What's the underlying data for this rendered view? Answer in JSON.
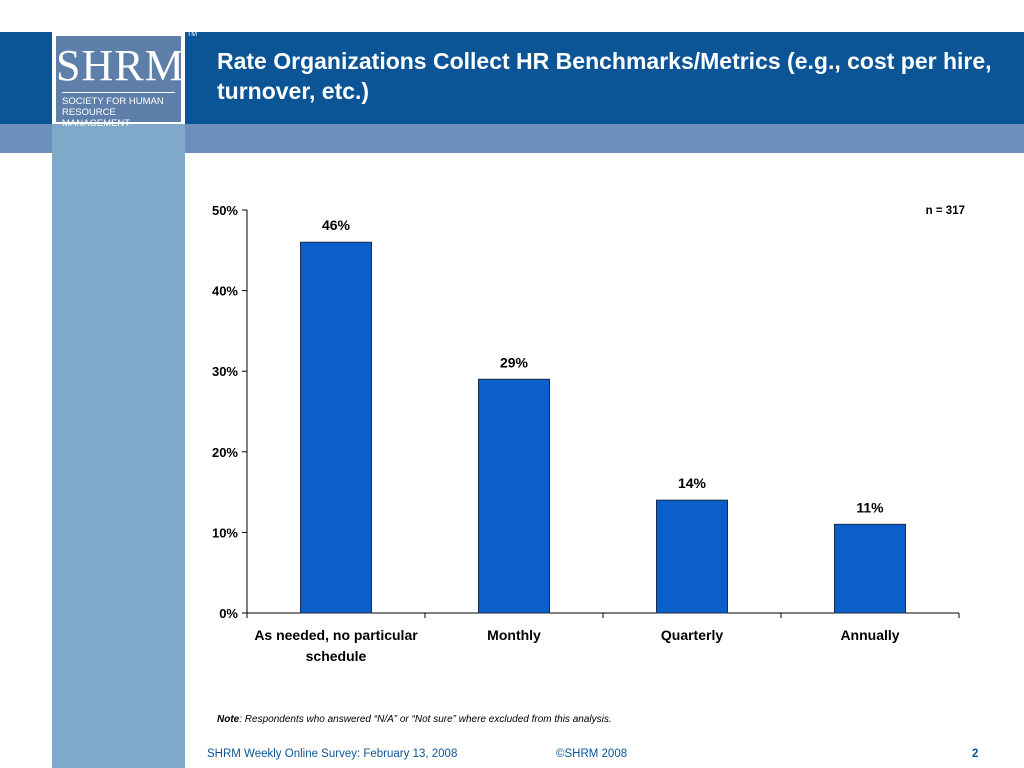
{
  "slide": {
    "title": "Rate Organizations Collect HR Benchmarks/Metrics (e.g., cost per hire, turnover, etc.)",
    "logo": {
      "letters": "SHRM",
      "tm": "TM",
      "line1": "SOCIETY FOR HUMAN",
      "line2": "RESOURCE MANAGEMENT"
    },
    "note_label": "Note",
    "note_text": ": Respondents who answered  “N/A” or “Not sure” where excluded from this analysis.",
    "footer_left": "SHRM Weekly Online Survey: February  13, 2008",
    "footer_center": "©SHRM 2008",
    "page_number": "2",
    "colors": {
      "header": "#0b5596",
      "band": "#6d8fbd",
      "sidebar": "#80a8c9",
      "bar": "#0b5fc9"
    }
  },
  "chart_data": {
    "type": "bar",
    "categories": [
      "As needed, no particular schedule",
      "Monthly",
      "Quarterly",
      "Annually"
    ],
    "values": [
      46,
      29,
      14,
      11
    ],
    "value_labels": [
      "46%",
      "29%",
      "14%",
      "11%"
    ],
    "ylim": [
      0,
      50
    ],
    "yticks": [
      0,
      10,
      20,
      30,
      40,
      50
    ],
    "ytick_labels": [
      "0%",
      "10%",
      "20%",
      "30%",
      "40%",
      "50%"
    ],
    "annotation": "n = 317",
    "grid": false,
    "legend": "none"
  }
}
